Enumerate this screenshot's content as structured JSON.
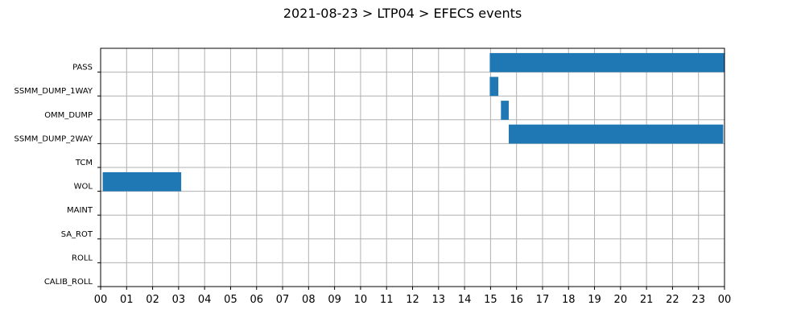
{
  "chart_data": {
    "type": "bar",
    "orientation": "horizontal-timeline",
    "title": "2021-08-23 > LTP04 > EFECS events",
    "xlabel": "",
    "ylabel": "",
    "xlim": [
      0,
      24
    ],
    "grid": true,
    "bar_color": "#1f77b4",
    "x_tick_labels": [
      "00",
      "01",
      "02",
      "03",
      "04",
      "05",
      "06",
      "07",
      "08",
      "09",
      "10",
      "11",
      "12",
      "13",
      "14",
      "15",
      "16",
      "17",
      "18",
      "19",
      "20",
      "21",
      "22",
      "23",
      "00"
    ],
    "categories": [
      "PASS",
      "SSMM_DUMP_1WAY",
      "OMM_DUMP",
      "SSMM_DUMP_2WAY",
      "TCM",
      "WOL",
      "MAINT",
      "SA_ROT",
      "ROLL",
      "CALIB_ROLL"
    ],
    "events": [
      {
        "category": "PASS",
        "start": 14.97,
        "end": 24.0
      },
      {
        "category": "SSMM_DUMP_1WAY",
        "start": 14.97,
        "end": 15.3
      },
      {
        "category": "OMM_DUMP",
        "start": 15.4,
        "end": 15.7
      },
      {
        "category": "SSMM_DUMP_2WAY",
        "start": 15.7,
        "end": 23.95
      },
      {
        "category": "WOL",
        "start": 0.08,
        "end": 3.1
      }
    ]
  }
}
